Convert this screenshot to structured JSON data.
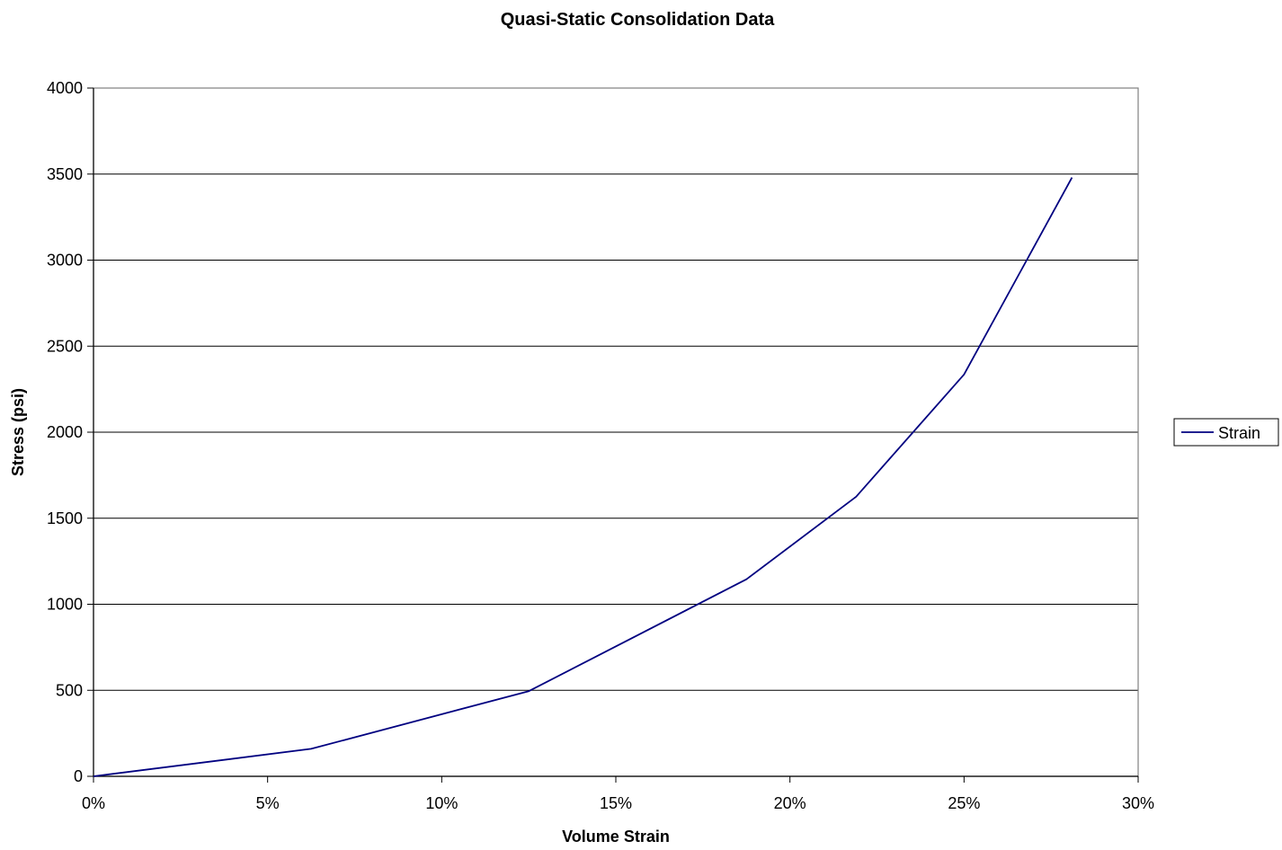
{
  "chart_data": {
    "type": "line",
    "title": "Quasi-Static Consolidation Data",
    "xlabel": "Volume Strain",
    "ylabel": "Stress (psi)",
    "xlim": [
      0,
      0.3
    ],
    "ylim": [
      0,
      4000
    ],
    "x_ticks": [
      0,
      0.05,
      0.1,
      0.15,
      0.2,
      0.25,
      0.3
    ],
    "x_tick_labels": [
      "0%",
      "5%",
      "10%",
      "15%",
      "20%",
      "25%",
      "30%"
    ],
    "y_ticks": [
      0,
      500,
      1000,
      1500,
      2000,
      2500,
      3000,
      3500,
      4000
    ],
    "y_tick_labels": [
      "0",
      "500",
      "1000",
      "1500",
      "2000",
      "2500",
      "3000",
      "3500",
      "4000"
    ],
    "grid": "horizontal",
    "legend_position": "right",
    "series": [
      {
        "name": "Strain",
        "color": "#000080",
        "x": [
          0,
          0.0625,
          0.125,
          0.1875,
          0.219,
          0.25,
          0.281
        ],
        "y": [
          0,
          160,
          495,
          1145,
          1625,
          2335,
          3480
        ]
      }
    ]
  }
}
